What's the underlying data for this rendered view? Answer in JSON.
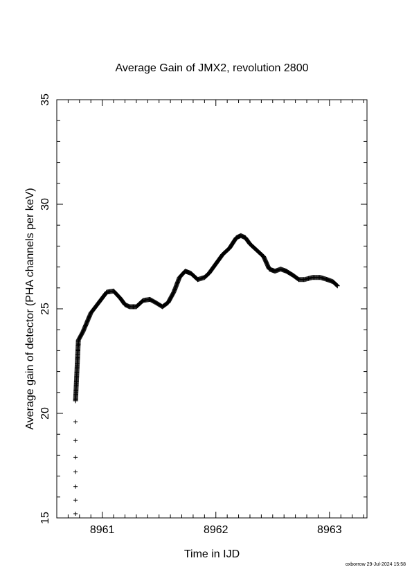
{
  "chart_data": {
    "type": "scatter",
    "title": "Average Gain of JMX2, revolution 2800",
    "xlabel": "Time in IJD",
    "ylabel": "Average gain of detector (PHA channels per keV)",
    "footer": "oxborrow 29-Jul-2024 15:58",
    "marker": "+",
    "xlim": [
      8960.6,
      8963.33
    ],
    "ylim": [
      15,
      35
    ],
    "x_ticks": [
      8961,
      8962,
      8963
    ],
    "y_ticks": [
      15,
      20,
      25,
      30,
      35
    ],
    "grid": false,
    "curve": {
      "x": [
        8960.765,
        8960.79,
        8960.83,
        8960.9,
        8960.97,
        8961.04,
        8961.1,
        8961.16,
        8961.2,
        8961.24,
        8961.3,
        8961.36,
        8961.42,
        8961.47,
        8961.53,
        8961.58,
        8961.63,
        8961.68,
        8961.73,
        8961.78,
        8961.84,
        8961.9,
        8961.94,
        8961.98,
        8962.02,
        8962.06,
        8962.12,
        8962.18,
        8962.22,
        8962.26,
        8962.3,
        8962.36,
        8962.42,
        8962.47,
        8962.52,
        8962.57,
        8962.62,
        8962.68,
        8962.73,
        8962.78,
        8962.85,
        8962.92,
        8962.98,
        8963.03,
        8963.07
      ],
      "y": [
        20.6,
        23.5,
        23.9,
        24.8,
        25.3,
        25.8,
        25.85,
        25.5,
        25.2,
        25.1,
        25.1,
        25.4,
        25.45,
        25.3,
        25.1,
        25.3,
        25.8,
        26.5,
        26.8,
        26.7,
        26.4,
        26.5,
        26.7,
        27.0,
        27.3,
        27.6,
        27.9,
        28.4,
        28.5,
        28.4,
        28.1,
        27.8,
        27.5,
        26.9,
        26.8,
        26.9,
        26.8,
        26.6,
        26.4,
        26.4,
        26.5,
        26.5,
        26.4,
        26.3,
        26.1
      ]
    },
    "isolated_points": {
      "x": [
        8960.765,
        8960.765,
        8960.765,
        8960.765,
        8960.765,
        8960.765,
        8960.765,
        8960.77,
        8960.773,
        8960.776,
        8960.78,
        8960.784,
        8960.788,
        8960.792
      ],
      "y": [
        15.2,
        15.85,
        16.5,
        17.2,
        17.9,
        18.7,
        19.6,
        21.0,
        21.4,
        21.85,
        22.25,
        22.65,
        23.0,
        23.3
      ]
    }
  }
}
